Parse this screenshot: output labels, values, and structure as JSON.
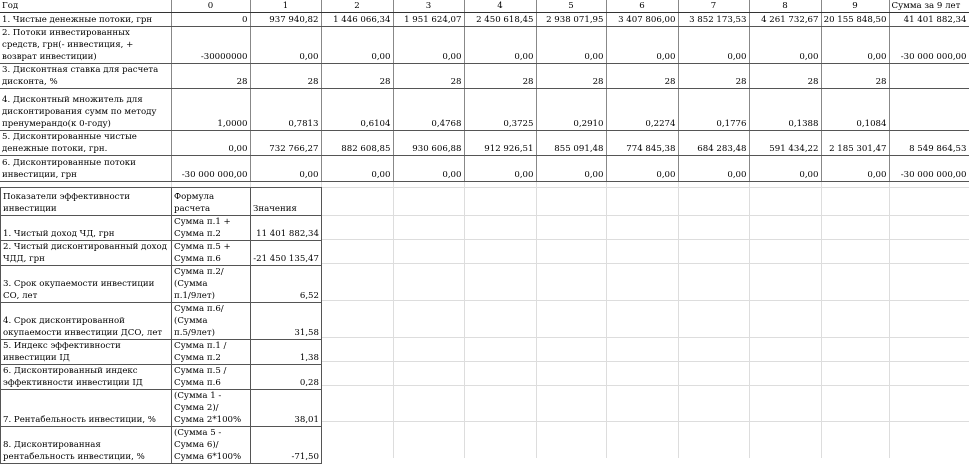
{
  "main_table": {
    "header": [
      "Год",
      "0",
      "1",
      "2",
      "3",
      "4",
      "5",
      "6",
      "7",
      "8",
      "9",
      "Сумма за 9 лет"
    ],
    "rows": [
      {
        "label": "1. Чистые денежные потоки, грн",
        "values": [
          "0",
          "937 940,82",
          "1 446 066,34",
          "1 951 624,07",
          "2 450 618,45",
          "2 938 071,95",
          "3 407 806,00",
          "3 852 173,53",
          "4 261 732,67",
          "20 155 848,50",
          "41 401 882,34"
        ]
      },
      {
        "label": "2. Потоки инвестированных средств, грн(- инвестиция, + возврат инвестиции)",
        "values": [
          "-30000000",
          "0,00",
          "0,00",
          "0,00",
          "0,00",
          "0,00",
          "0,00",
          "0,00",
          "0,00",
          "0,00",
          "-30 000 000,00"
        ]
      },
      {
        "label": "3. Дисконтная ставка для расчета дисконта, %",
        "values": [
          "28",
          "28",
          "28",
          "28",
          "28",
          "28",
          "28",
          "28",
          "28",
          "28",
          ""
        ]
      },
      {
        "label": "4. Дисконтный множитель для дисконтирования сумм по методу пренумерандо(к 0-году)",
        "values": [
          "1,0000",
          "0,7813",
          "0,6104",
          "0,4768",
          "0,3725",
          "0,2910",
          "0,2274",
          "0,1776",
          "0,1388",
          "0,1084",
          ""
        ]
      },
      {
        "label": "5. Дисконтированные чистые денежные потоки, грн.",
        "values": [
          "0,00",
          "732 766,27",
          "882 608,85",
          "930 606,88",
          "912 926,51",
          "855 091,48",
          "774 845,38",
          "684 283,48",
          "591 434,22",
          "2 185 301,47",
          "8 549 864,53"
        ]
      },
      {
        "label": "6. Дисконтированные потоки инвестиции, грн",
        "values": [
          "-30 000 000,00",
          "0,00",
          "0,00",
          "0,00",
          "0,00",
          "0,00",
          "0,00",
          "0,00",
          "0,00",
          "0,00",
          "-30 000 000,00"
        ]
      }
    ]
  },
  "indicators": {
    "header": [
      "Показатели эффективности инвестиции",
      "Формула расчета",
      "Значения"
    ],
    "rows": [
      {
        "label": "1. Чистый доход ЧД, грн",
        "formula": "Сумма п.1 + Сумма п.2",
        "value": "11 401 882,34"
      },
      {
        "label": "2. Чистый дисконтированный доход ЧДД, грн",
        "formula": "Сумма п.5 + Сумма п.6",
        "value": "-21 450 135,47"
      },
      {
        "label": "3. Срок окупаемости инвестиции СО, лет",
        "formula": "Сумма п.2/ (Сумма п.1/9лет)",
        "value": "6,52"
      },
      {
        "label": "4. Срок дисконтированной окупаемости инвестиции ДСО, лет",
        "formula": "Сумма п.6/ (Сумма п.5/9лет)",
        "value": "31,58"
      },
      {
        "label": "5. Индекс эффективности инвестиции ІД",
        "formula": "Сумма п.1 /Сумма п.2",
        "value": "1,38"
      },
      {
        "label": "6. Дисконтированный индекс эффективности инвестиции ІД",
        "formula": "Сумма п.5 /Сумма п.6",
        "value": "0,28"
      },
      {
        "label": "7. Рентабельность инвестиции, %",
        "formula": "(Сумма 1 - Сумма 2)/ Сумма 2*100%",
        "value": "38,01"
      },
      {
        "label": "8. Дисконтированная рентабельность инвестиции, %",
        "formula": "(Сумма 5 - Сумма 6)/ Сумма 6*100%",
        "value": "-71,50"
      }
    ]
  }
}
